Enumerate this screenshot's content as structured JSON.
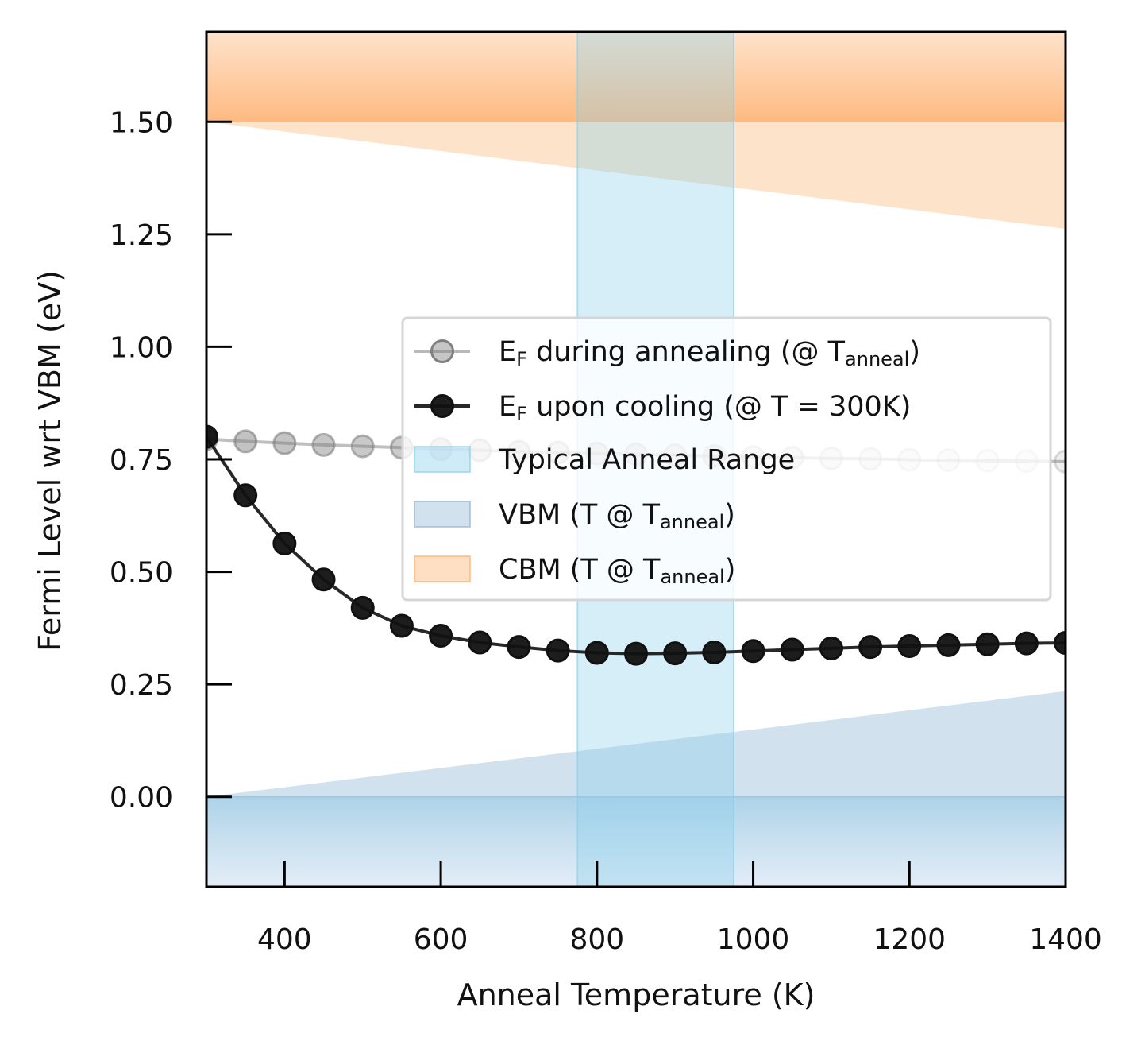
{
  "chart_data": {
    "type": "line",
    "xlabel": "Anneal Temperature (K)",
    "ylabel": "Fermi Level wrt VBM (eV)",
    "xlim": [
      300,
      1400
    ],
    "ylim": [
      -0.2,
      1.7
    ],
    "xticks": [
      400,
      600,
      800,
      1000,
      1200,
      1400
    ],
    "xtick_labels": [
      "400",
      "600",
      "800",
      "1000",
      "1200",
      "1400"
    ],
    "yticks": [
      0.0,
      0.25,
      0.5,
      0.75,
      1.0,
      1.25,
      1.5
    ],
    "ytick_labels": [
      "0.00",
      "0.25",
      "0.50",
      "0.75",
      "1.00",
      "1.25",
      "1.50"
    ],
    "series": [
      {
        "name": "E_F during annealing (@ T_anneal)",
        "style": "gray-faded",
        "x": [
          300,
          350,
          400,
          450,
          500,
          550,
          600,
          650,
          700,
          750,
          800,
          850,
          900,
          950,
          1000,
          1050,
          1100,
          1150,
          1200,
          1250,
          1300,
          1350,
          1400
        ],
        "y": [
          0.795,
          0.79,
          0.786,
          0.782,
          0.779,
          0.776,
          0.773,
          0.77,
          0.767,
          0.765,
          0.763,
          0.761,
          0.759,
          0.757,
          0.755,
          0.754,
          0.752,
          0.751,
          0.749,
          0.748,
          0.747,
          0.746,
          0.745
        ]
      },
      {
        "name": "E_F upon cooling (@ T = 300K)",
        "style": "black",
        "x": [
          300,
          350,
          400,
          450,
          500,
          550,
          600,
          650,
          700,
          750,
          800,
          850,
          900,
          950,
          1000,
          1050,
          1100,
          1150,
          1200,
          1250,
          1300,
          1350,
          1400
        ],
        "y": [
          0.8,
          0.67,
          0.563,
          0.483,
          0.42,
          0.38,
          0.358,
          0.343,
          0.333,
          0.325,
          0.32,
          0.318,
          0.319,
          0.321,
          0.324,
          0.327,
          0.33,
          0.333,
          0.335,
          0.337,
          0.339,
          0.341,
          0.342
        ]
      }
    ],
    "anneal_range": {
      "x": [
        775,
        975
      ]
    },
    "vbm_band": {
      "x": [
        300,
        1400
      ],
      "top_y": [
        0.0,
        0.235
      ]
    },
    "cbm_band": {
      "x": [
        300,
        1400
      ],
      "bottom_y": [
        1.5,
        1.262
      ]
    },
    "legend": {
      "placement": "center-right",
      "entries": [
        {
          "main": "E",
          "sub": "F",
          "text": " during annealing (@ T",
          "sub2": "anneal",
          "tail": ")"
        },
        {
          "main": "E",
          "sub": "F",
          "text": " upon cooling (@ T = 300K)",
          "sub2": "",
          "tail": ""
        },
        {
          "main": "",
          "sub": "",
          "text": "Typical Anneal Range",
          "sub2": "",
          "tail": ""
        },
        {
          "main": "",
          "sub": "",
          "text": "VBM (T @ T",
          "sub2": "anneal",
          "tail": ")"
        },
        {
          "main": "",
          "sub": "",
          "text": "CBM (T @ T",
          "sub2": "anneal",
          "tail": ")"
        }
      ]
    },
    "colors": {
      "cooling": "#111111",
      "annealing": "#808080",
      "anneal_range": "#87ceeb",
      "vbm": "#8cb4d2",
      "cbm": "#fdae6b"
    }
  }
}
